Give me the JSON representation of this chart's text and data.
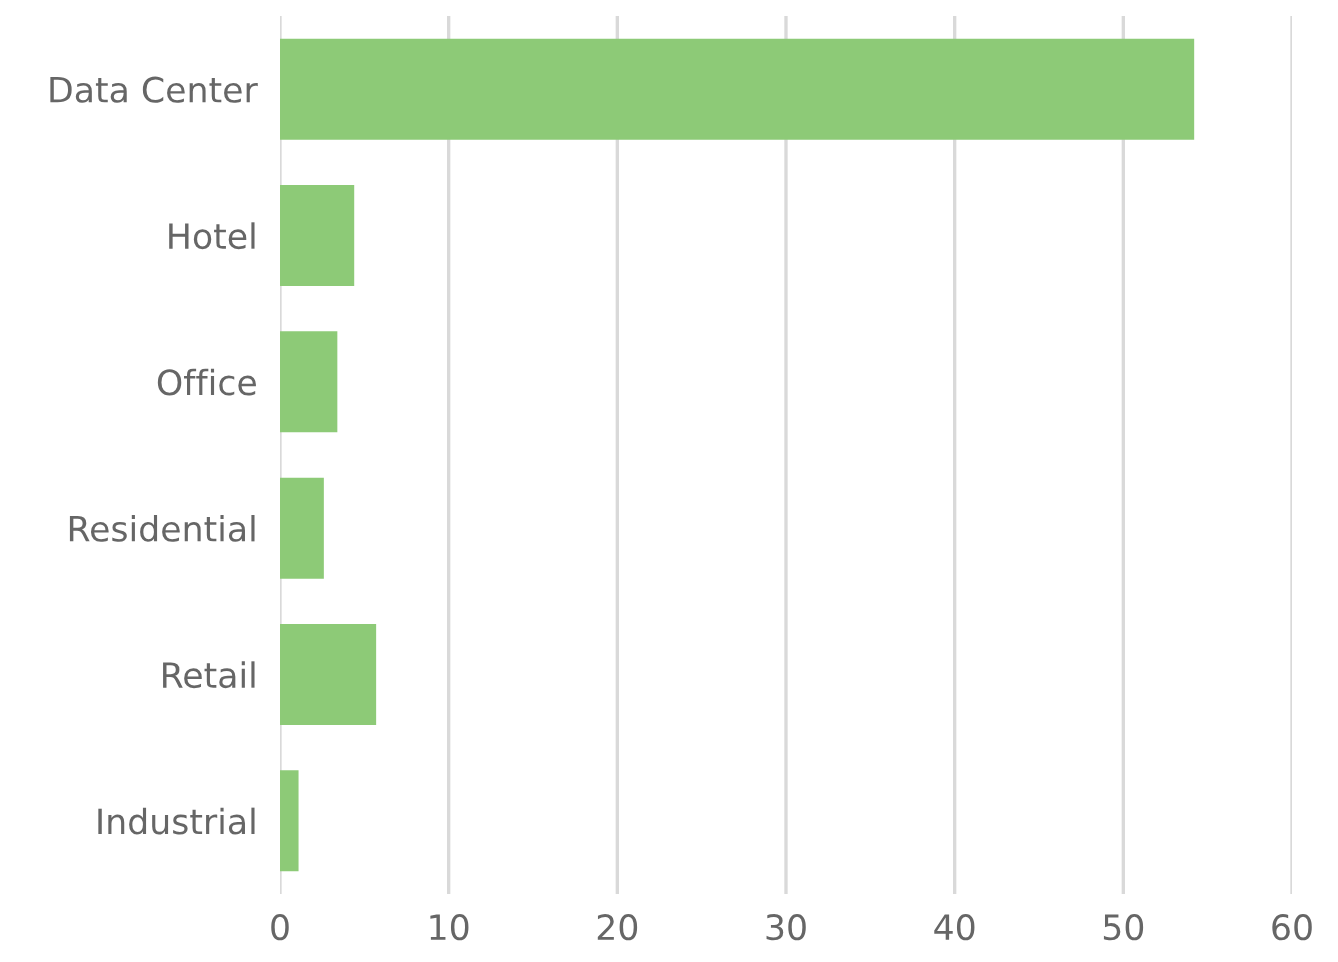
{
  "chart_data": {
    "type": "bar",
    "orientation": "horizontal",
    "categories": [
      "Data Center",
      "Hotel",
      "Office",
      "Residential",
      "Retail",
      "Industrial"
    ],
    "values": [
      54.2,
      4.4,
      3.4,
      2.6,
      5.7,
      1.1
    ],
    "color": "#8dca77",
    "xlim": [
      0,
      60
    ],
    "xticks": [
      0,
      10,
      20,
      30,
      40,
      50,
      60
    ],
    "grid": "x"
  }
}
